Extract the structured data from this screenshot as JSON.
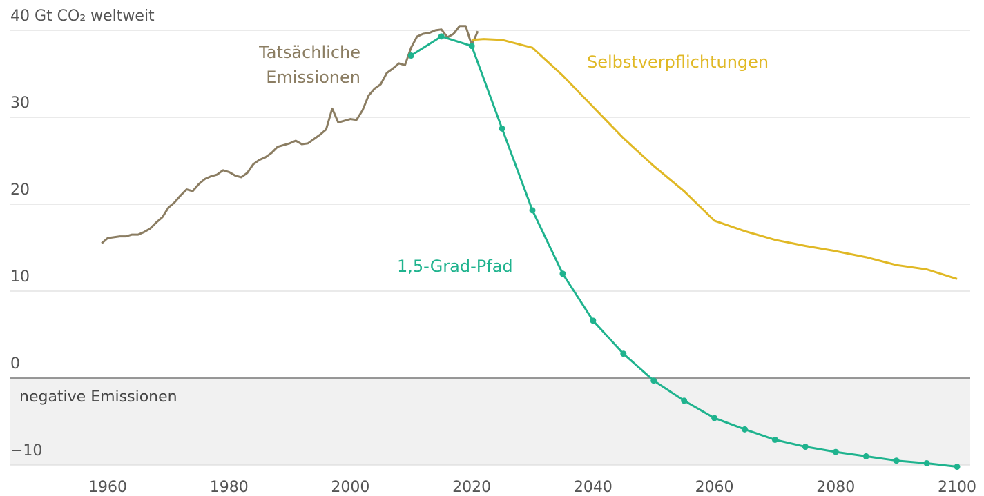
{
  "chart_data": {
    "type": "line",
    "annotations": [
      "negative Emissionen"
    ],
    "xlim": [
      1960,
      2100
    ],
    "xticks": [
      1960,
      1980,
      2000,
      2020,
      2040,
      2060,
      2080,
      2100
    ],
    "ylim": [
      -10,
      40
    ],
    "yticks": [
      {
        "value": -10,
        "label": "−10"
      },
      0,
      10,
      20,
      30,
      {
        "value": 40,
        "label": "40 Gt CO₂ weltweit"
      }
    ],
    "grid": true,
    "series": [
      {
        "name": "Tatsächliche Emissionen",
        "color": "#8b7d62",
        "dots": false,
        "x": [
          1959,
          1960,
          1961,
          1962,
          1963,
          1964,
          1965,
          1966,
          1967,
          1968,
          1969,
          1970,
          1971,
          1972,
          1973,
          1974,
          1975,
          1976,
          1977,
          1978,
          1979,
          1980,
          1981,
          1982,
          1983,
          1984,
          1985,
          1986,
          1987,
          1988,
          1989,
          1990,
          1991,
          1992,
          1993,
          1994,
          1995,
          1996,
          1997,
          1998,
          1999,
          2000,
          2001,
          2002,
          2003,
          2004,
          2005,
          2006,
          2007,
          2008,
          2009,
          2010,
          2011,
          2012,
          2013,
          2014,
          2015,
          2016,
          2017,
          2018,
          2019,
          2020,
          2021
        ],
        "values": [
          15.5,
          16.1,
          16.2,
          16.3,
          16.3,
          16.5,
          16.5,
          16.8,
          17.2,
          17.9,
          18.5,
          19.6,
          20.2,
          21.0,
          21.7,
          21.5,
          22.3,
          22.9,
          23.2,
          23.4,
          23.9,
          23.7,
          23.3,
          23.1,
          23.6,
          24.6,
          25.1,
          25.4,
          25.9,
          26.6,
          26.8,
          27.0,
          27.3,
          26.9,
          27.0,
          27.5,
          28.0,
          28.6,
          31.0,
          29.4,
          29.6,
          29.8,
          29.7,
          30.8,
          32.5,
          33.3,
          33.8,
          35.1,
          35.6,
          36.2,
          36.0,
          38.0,
          39.3,
          39.6,
          39.7,
          40.0,
          40.1,
          39.2,
          39.6,
          40.5,
          40.5,
          38.3,
          39.9
        ]
      },
      {
        "name": "Selbstverpflichtungen",
        "color": "#e0b825",
        "dots": false,
        "x": [
          2020,
          2022,
          2025,
          2030,
          2035,
          2040,
          2045,
          2050,
          2055,
          2060,
          2065,
          2070,
          2075,
          2080,
          2085,
          2090,
          2095,
          2100
        ],
        "values": [
          38.9,
          39.0,
          38.9,
          38.0,
          34.8,
          31.2,
          27.6,
          24.4,
          21.5,
          18.1,
          16.9,
          15.9,
          15.2,
          14.6,
          13.9,
          13.0,
          12.5,
          11.4
        ]
      },
      {
        "name": "1,5-Grad-Pfad",
        "color": "#1fb38e",
        "dots": true,
        "x": [
          2010,
          2015,
          2020,
          2025,
          2030,
          2035,
          2040,
          2045,
          2050,
          2055,
          2060,
          2065,
          2070,
          2075,
          2080,
          2085,
          2090,
          2095,
          2100
        ],
        "values": [
          37.1,
          39.3,
          38.2,
          28.7,
          19.3,
          12.0,
          6.6,
          2.8,
          -0.3,
          -2.6,
          -4.6,
          -5.9,
          -7.1,
          -7.9,
          -8.5,
          -9.0,
          -9.5,
          -9.8,
          -10.2
        ]
      }
    ]
  }
}
